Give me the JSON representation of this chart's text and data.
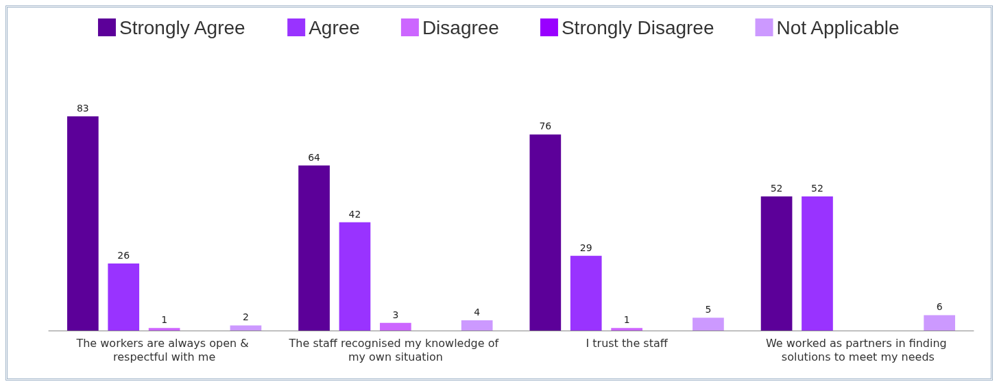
{
  "chart_data": {
    "type": "bar",
    "relative": false,
    "categories": [
      "The workers are always open & respectful with me",
      "The staff recognised my knowledge of my own situation",
      "I trust the staff",
      "We worked as partners in finding solutions to meet my needs"
    ],
    "series": [
      {
        "name": "Strongly Agree",
        "color": "#5c0099",
        "values": [
          83,
          64,
          76,
          52
        ]
      },
      {
        "name": "Agree",
        "color": "#9933ff",
        "values": [
          26,
          42,
          29,
          52
        ]
      },
      {
        "name": "Disagree",
        "color": "#cc66ff",
        "values": [
          1,
          3,
          1,
          null
        ]
      },
      {
        "name": "Strongly Disagree",
        "color": "#9900ff",
        "values": [
          null,
          null,
          null,
          null
        ]
      },
      {
        "name": "Not Applicable",
        "color": "#cc99ff",
        "values": [
          2,
          4,
          5,
          6
        ]
      }
    ],
    "data_labels": true,
    "legend": "top",
    "grid": false
  }
}
